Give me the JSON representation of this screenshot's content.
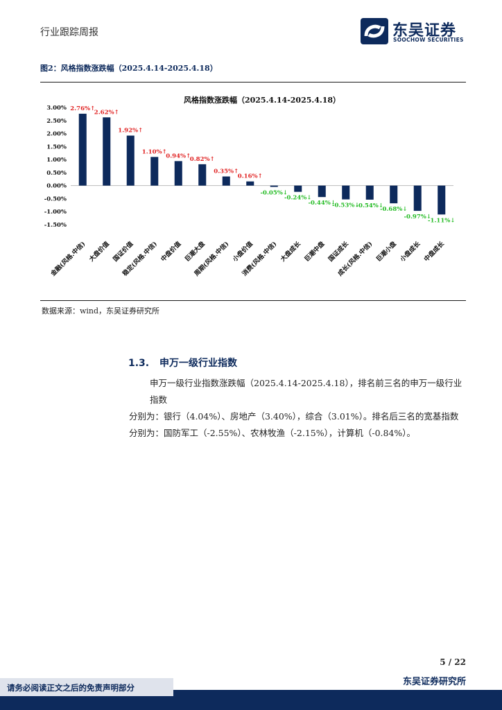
{
  "header": {
    "report_type": "行业跟踪周报"
  },
  "logo": {
    "name_cn": "东吴证券",
    "name_en": "SOOCHOW SECURITIES"
  },
  "figure": {
    "title": "图2：风格指数涨跌幅（2025.4.14-2025.4.18）",
    "source": "数据来源：wind，东吴证券研究所"
  },
  "chart_data": {
    "type": "bar",
    "title": "风格指数涨跌幅（2025.4.14-2025.4.18）",
    "categories": [
      "金融(风格.中信)",
      "大盘价值",
      "国证价值",
      "稳定(风格.中信)",
      "中盘价值",
      "巨潮大盘",
      "周期(风格.中信)",
      "小盘价值",
      "消费(风格.中信)",
      "大盘成长",
      "巨潮中盘",
      "国证成长",
      "成长(风格.中信)",
      "巨潮小盘",
      "小盘成长",
      "中盘成长"
    ],
    "values": [
      2.76,
      2.62,
      1.92,
      1.1,
      0.94,
      0.82,
      0.35,
      0.16,
      -0.05,
      -0.24,
      -0.44,
      -0.53,
      -0.54,
      -0.68,
      -0.97,
      -1.11
    ],
    "labels": [
      "2.76%↑",
      "2.62%↑",
      "1.92%↑",
      "1.10%↑",
      "0.94%↑",
      "0.82%↑",
      "0.35%↑",
      "0.16%↑",
      "-0.05%↓",
      "-0.24%↓",
      "-0.44%↓",
      "-0.53%↓",
      "-0.54%↓",
      "-0.68%↓",
      "-0.97%↓",
      "-1.11%↓"
    ],
    "yticks": [
      "3.00%",
      "2.50%",
      "2.00%",
      "1.50%",
      "1.00%",
      "0.50%",
      "0.00%",
      "-0.50%",
      "-1.00%",
      "-1.50%"
    ],
    "ylim": [
      -1.5,
      3.0
    ],
    "bar_color": "#0d2a5c",
    "pos_label_color": "#e02020",
    "neg_label_color": "#22bb22"
  },
  "section": {
    "number": "1.3.",
    "title": "申万一级行业指数"
  },
  "paragraph": {
    "line1": "申万一级行业指数涨跌幅（2025.4.14-2025.4.18），排名前三名的申万一级行业指数",
    "line2": "分别为：银行（4.04%）、房地产（3.40%），综合（3.01%）。排名后三名的宽基指数",
    "line3": "分别为：国防军工（-2.55%）、农林牧渔（-2.15%），计算机（-0.84%）。"
  },
  "footer": {
    "page": "5  /  22",
    "company": "东吴证券研究所",
    "disclaimer": "请务必阅读正文之后的免责声明部分"
  }
}
